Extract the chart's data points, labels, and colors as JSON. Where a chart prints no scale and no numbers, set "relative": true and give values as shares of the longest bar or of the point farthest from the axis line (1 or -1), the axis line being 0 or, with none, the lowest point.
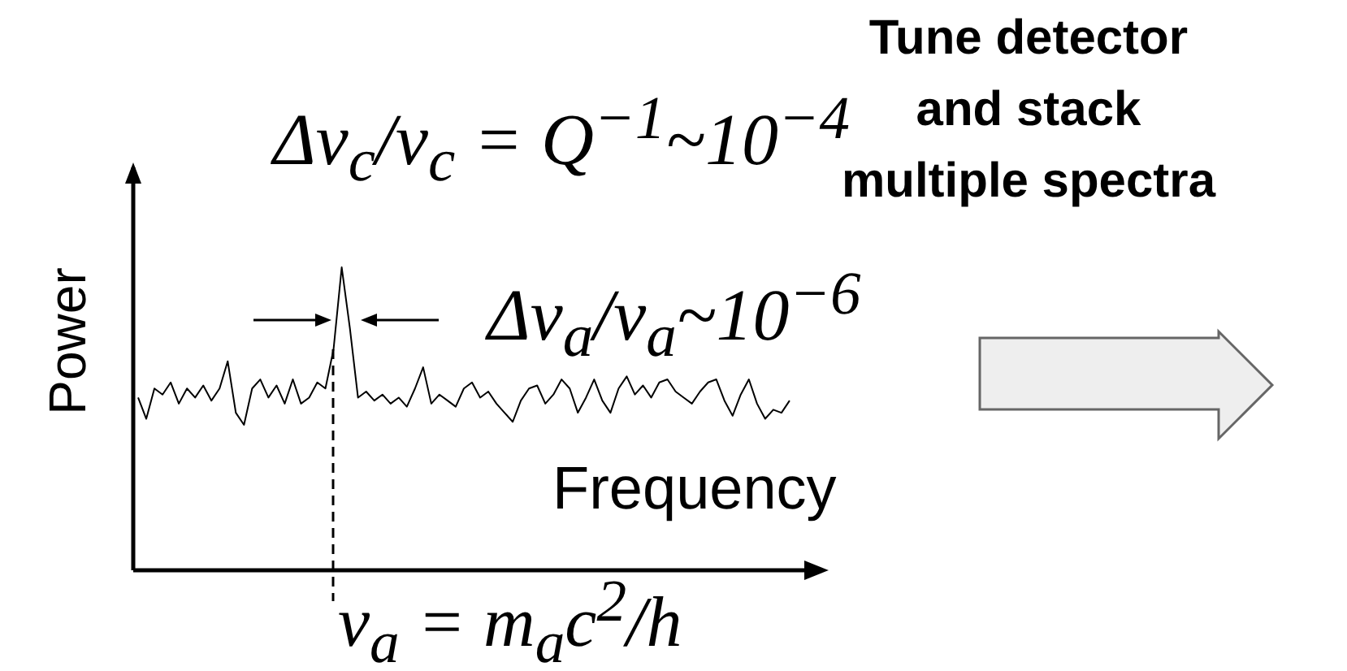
{
  "chart_data": {
    "type": "line",
    "relative": true,
    "xlabel": "Frequency",
    "ylabel": "Power",
    "marker": "none",
    "line_style": "solid",
    "grid": false,
    "legend": false,
    "categories": [
      null,
      null,
      null,
      null,
      null,
      null,
      null,
      null,
      null,
      null,
      null,
      null,
      null,
      null,
      null,
      null,
      null,
      null,
      null,
      null,
      null,
      null,
      null,
      null,
      null,
      null,
      null,
      null,
      null,
      null,
      null,
      null,
      null,
      null,
      null,
      null,
      null,
      null,
      null,
      null,
      null,
      null,
      null,
      null,
      null,
      null,
      null,
      null,
      null,
      null,
      null,
      null,
      null,
      null,
      null,
      null,
      null,
      null,
      null,
      null,
      null,
      null,
      null,
      null,
      null,
      null,
      null,
      null,
      null,
      null,
      null,
      null,
      null,
      null,
      null,
      null,
      null,
      null,
      null,
      null,
      null
    ],
    "series": [
      {
        "color": "#000000",
        "values": [
          0.57,
          0.5,
          0.6,
          0.58,
          0.62,
          0.55,
          0.6,
          0.57,
          0.61,
          0.56,
          0.6,
          0.69,
          0.52,
          0.48,
          0.6,
          0.63,
          0.57,
          0.61,
          0.55,
          0.63,
          0.55,
          0.57,
          0.62,
          0.6,
          0.73,
          1,
          0.8,
          0.57,
          0.59,
          0.56,
          0.58,
          0.55,
          0.57,
          0.54,
          0.6,
          0.67,
          0.55,
          0.58,
          0.56,
          0.54,
          0.6,
          0.62,
          0.57,
          0.59,
          0.55,
          0.52,
          0.49,
          0.56,
          0.6,
          0.61,
          0.55,
          0.58,
          0.63,
          0.6,
          0.52,
          0.57,
          0.63,
          0.56,
          0.52,
          0.6,
          0.64,
          0.58,
          0.61,
          0.57,
          0.62,
          0.63,
          0.59,
          0.57,
          0.55,
          0.59,
          0.62,
          0.63,
          0.56,
          0.51,
          0.58,
          0.63,
          0.55,
          0.5,
          0.53,
          0.52,
          0.56
        ]
      }
    ],
    "annotations": [
      "Δν$_{c}$/ν$_{c}$ = Q$^{−1}$~10$^{−4}$",
      "Δν$_{a}$/ν$_{a}$~10$^{−6}$",
      "Tune detector and stack multiple spectra",
      "ν$_{a}$ = m$_{a}$c$^{2}$/h"
    ]
  }
}
